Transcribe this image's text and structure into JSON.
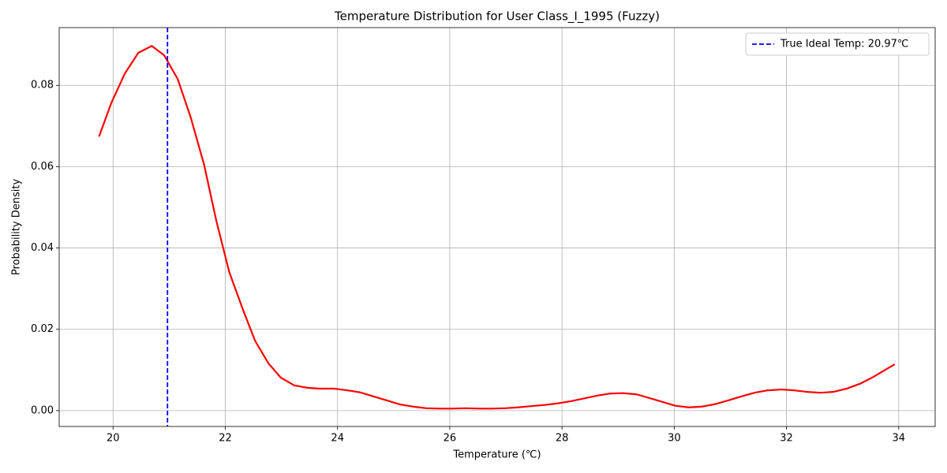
{
  "chart_data": {
    "type": "line",
    "title": "Temperature Distribution for User Class_I_1995 (Fuzzy)",
    "x_label": "Temperature (℃)",
    "y_label": "Probability Density",
    "xlim": [
      19.04,
      34.65
    ],
    "ylim": [
      -0.0039,
      0.0942
    ],
    "xticks": [
      20,
      22,
      24,
      26,
      28,
      30,
      32,
      34
    ],
    "yticks": [
      {
        "value": 0,
        "label": "0.00"
      },
      {
        "value": 0.02,
        "label": "0.02"
      },
      {
        "value": 0.04,
        "label": "0.04"
      },
      {
        "value": 0.06,
        "label": "0.06"
      },
      {
        "value": 0.08,
        "label": "0.08"
      }
    ],
    "grid": true,
    "legend": "upper right",
    "x": [
      19.75,
      19.97,
      20.21,
      20.45,
      20.69,
      20.91,
      21.15,
      21.38,
      21.62,
      21.84,
      22.07,
      22.31,
      22.53,
      22.77,
      22.99,
      23.23,
      23.47,
      23.7,
      23.94,
      24.17,
      24.4,
      24.64,
      24.88,
      25.12,
      25.34,
      25.58,
      25.81,
      26.04,
      26.28,
      26.51,
      26.75,
      26.99,
      27.21,
      27.45,
      27.69,
      27.93,
      28.15,
      28.39,
      28.63,
      28.86,
      29.09,
      29.33,
      29.56,
      29.8,
      30.02,
      30.26,
      30.5,
      30.73,
      30.96,
      31.2,
      31.43,
      31.67,
      31.91,
      32.13,
      32.37,
      32.61,
      32.83,
      33.07,
      33.31,
      33.55,
      33.78,
      33.93
    ],
    "series": [
      {
        "color": "#ff0000",
        "values": [
          0.0674,
          0.0757,
          0.0829,
          0.088,
          0.0897,
          0.0874,
          0.0816,
          0.0723,
          0.0606,
          0.0467,
          0.0341,
          0.025,
          0.0172,
          0.0116,
          0.0081,
          0.0062,
          0.0056,
          0.0054,
          0.0054,
          0.005,
          0.0045,
          0.0035,
          0.0025,
          0.0015,
          0.001,
          0.0006,
          0.0005,
          0.0005,
          0.0006,
          0.0005,
          0.0005,
          0.0006,
          0.0008,
          0.0011,
          0.0014,
          0.0018,
          0.0023,
          0.003,
          0.0037,
          0.0042,
          0.0043,
          0.004,
          0.0031,
          0.0021,
          0.0012,
          0.0008,
          0.001,
          0.0016,
          0.0025,
          0.0035,
          0.0044,
          0.005,
          0.0052,
          0.005,
          0.0046,
          0.0044,
          0.0046,
          0.0054,
          0.0066,
          0.0083,
          0.0102,
          0.0114
        ]
      }
    ],
    "vline": {
      "x": 20.97,
      "name": "True Ideal Temp: 20.97℃",
      "color": "#0000ff",
      "style": "dashed"
    }
  }
}
